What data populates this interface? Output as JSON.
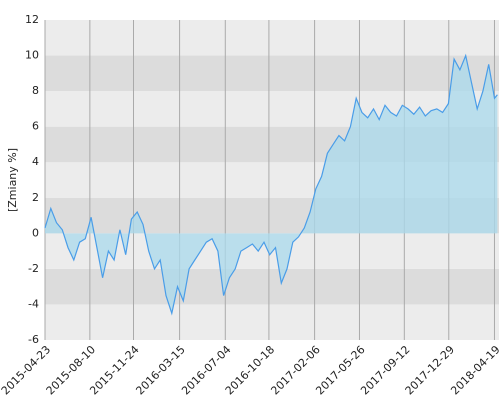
{
  "chart_data": {
    "type": "area",
    "y_label": "[Zmiany %]",
    "x": [
      "2015-04-23",
      "2015-05-07",
      "2015-05-21",
      "2015-06-04",
      "2015-06-18",
      "2015-07-02",
      "2015-07-16",
      "2015-07-30",
      "2015-08-13",
      "2015-08-27",
      "2015-09-10",
      "2015-09-24",
      "2015-10-08",
      "2015-10-22",
      "2015-11-05",
      "2015-11-19",
      "2015-12-03",
      "2015-12-17",
      "2015-12-31",
      "2016-01-14",
      "2016-01-28",
      "2016-02-11",
      "2016-02-25",
      "2016-03-10",
      "2016-03-24",
      "2016-04-07",
      "2016-04-21",
      "2016-05-05",
      "2016-05-19",
      "2016-06-02",
      "2016-06-16",
      "2016-06-30",
      "2016-07-14",
      "2016-07-28",
      "2016-08-11",
      "2016-08-25",
      "2016-09-08",
      "2016-09-22",
      "2016-10-06",
      "2016-10-20",
      "2016-11-03",
      "2016-11-17",
      "2016-12-01",
      "2016-12-15",
      "2016-12-29",
      "2017-01-12",
      "2017-01-26",
      "2017-02-09",
      "2017-02-23",
      "2017-03-09",
      "2017-03-23",
      "2017-04-06",
      "2017-04-20",
      "2017-05-04",
      "2017-05-18",
      "2017-06-01",
      "2017-06-15",
      "2017-06-29",
      "2017-07-13",
      "2017-07-27",
      "2017-08-10",
      "2017-08-24",
      "2017-09-07",
      "2017-09-21",
      "2017-10-05",
      "2017-10-19",
      "2017-11-02",
      "2017-11-16",
      "2017-11-30",
      "2017-12-14",
      "2017-12-28",
      "2018-01-11",
      "2018-01-25",
      "2018-02-08",
      "2018-02-22",
      "2018-03-08",
      "2018-03-22",
      "2018-04-05",
      "2018-04-19",
      "2018-04-26"
    ],
    "series": [
      {
        "color": "#4a9de8",
        "fill": "#a9d9ec",
        "values": [
          0.3,
          1.4,
          0.6,
          0.2,
          -0.8,
          -1.5,
          -0.5,
          -0.3,
          0.9,
          -0.8,
          -2.5,
          -1.0,
          -1.5,
          0.2,
          -1.2,
          0.8,
          1.2,
          0.5,
          -1.0,
          -2.0,
          -1.5,
          -3.5,
          -4.5,
          -3.0,
          -3.8,
          -2.0,
          -1.5,
          -1.0,
          -0.5,
          -0.3,
          -1.0,
          -3.5,
          -2.5,
          -2.0,
          -1.0,
          -0.8,
          -0.6,
          -1.0,
          -0.5,
          -1.2,
          -0.8,
          -2.8,
          -2.0,
          -0.5,
          -0.2,
          0.3,
          1.2,
          2.5,
          3.2,
          4.5,
          5.0,
          5.5,
          5.2,
          6.0,
          7.6,
          6.8,
          6.5,
          7.0,
          6.4,
          7.2,
          6.8,
          6.6,
          7.2,
          7.0,
          6.7,
          7.1,
          6.6,
          6.9,
          7.0,
          6.8,
          7.3,
          9.8,
          9.2,
          10.0,
          8.5,
          7.0,
          8.0,
          9.5,
          7.6,
          7.8
        ]
      }
    ],
    "xlim": [
      "2015-04-23",
      "2018-04-30"
    ],
    "xticks": [
      "2015-04-23",
      "2015-08-10",
      "2015-11-24",
      "2016-03-15",
      "2016-07-04",
      "2016-10-18",
      "2017-02-06",
      "2017-05-26",
      "2017-09-12",
      "2017-12-29",
      "2018-04-19"
    ],
    "ylim": [
      -6,
      12
    ],
    "yticks": [
      -6,
      -4,
      -2,
      0,
      2,
      4,
      6,
      8,
      10,
      12
    ],
    "grid": true
  }
}
